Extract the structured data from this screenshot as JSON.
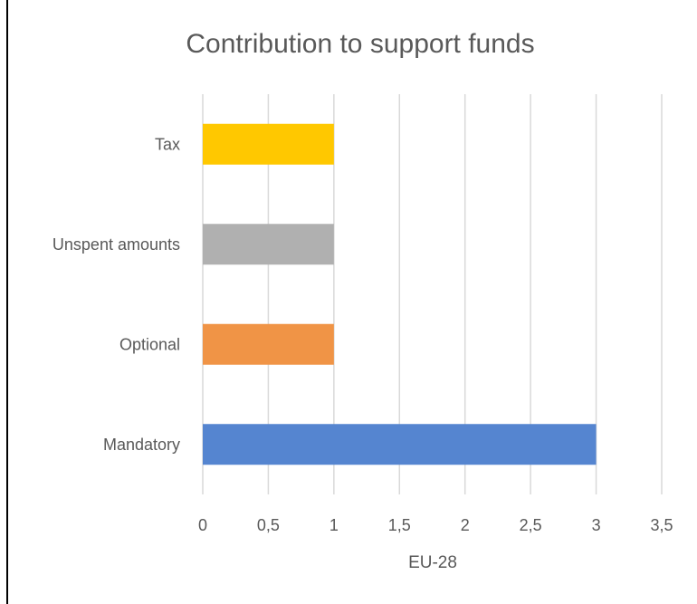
{
  "chart_data": {
    "type": "bar",
    "orientation": "horizontal",
    "title": "Contribution to support funds",
    "xlabel": "EU-28",
    "ylabel": "",
    "categories": [
      "Mandatory",
      "Optional",
      "Unspent amounts",
      "Tax"
    ],
    "values": [
      3,
      1,
      1,
      1
    ],
    "colors": [
      "#5585d0",
      "#f09446",
      "#b0b0b0",
      "#ffc800"
    ],
    "xlim": [
      0,
      3.5
    ],
    "x_ticks": [
      "0",
      "0,5",
      "1",
      "1,5",
      "2",
      "2,5",
      "3",
      "3,5"
    ],
    "grid": "vertical",
    "legend": "none"
  }
}
